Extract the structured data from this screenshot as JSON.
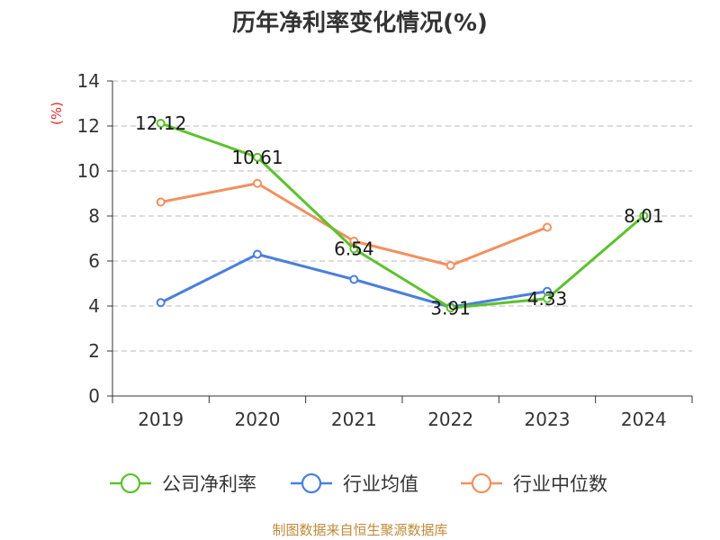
{
  "chart_data": {
    "type": "line",
    "title": "历年净利率变化情况(%)",
    "ylabel": "(%)",
    "xlabel": "",
    "categories": [
      "2019",
      "2020",
      "2021",
      "2022",
      "2023",
      "2024"
    ],
    "ylim": [
      0,
      14
    ],
    "yticks": [
      0,
      2,
      4,
      6,
      8,
      10,
      12,
      14
    ],
    "grid": true,
    "legend_position": "bottom",
    "series": [
      {
        "name": "公司净利率",
        "color": "#5cc22c",
        "values": [
          12.12,
          10.61,
          6.54,
          3.91,
          4.33,
          8.01
        ],
        "labels": [
          "12.12",
          "10.61",
          "6.54",
          "3.91",
          "4.33",
          "8.01"
        ]
      },
      {
        "name": "行业均值",
        "color": "#4a7fdb",
        "values": [
          4.15,
          6.3,
          5.18,
          3.95,
          4.65,
          null
        ]
      },
      {
        "name": "行业中位数",
        "color": "#f39060",
        "values": [
          8.62,
          9.45,
          6.88,
          5.8,
          7.5,
          null
        ]
      }
    ]
  },
  "source": "制图数据来自恒生聚源数据库"
}
